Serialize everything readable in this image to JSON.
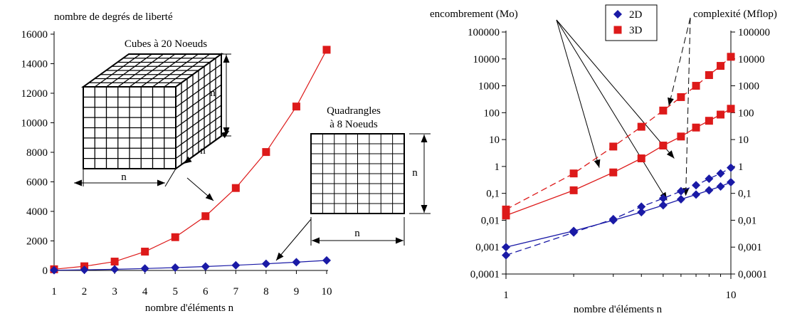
{
  "colors": {
    "red": "#dd1a1a",
    "blue": "#1a1aa6",
    "black": "#000000"
  },
  "chart_data": [
    {
      "type": "line",
      "title": "",
      "ylabel": "nombre de degrés de liberté",
      "xlabel": "nombre d'éléments n",
      "x": [
        1,
        2,
        3,
        4,
        5,
        6,
        7,
        8,
        9,
        10
      ],
      "xlim": [
        1,
        10
      ],
      "ylim": [
        0,
        16000
      ],
      "xticks": [
        "1",
        "2",
        "3",
        "4",
        "5",
        "6",
        "7",
        "8",
        "9",
        "10"
      ],
      "yticks": [
        "0",
        "2000",
        "4000",
        "6000",
        "8000",
        "10000",
        "12000",
        "14000",
        "16000"
      ],
      "series": [
        {
          "key": "3D",
          "color": "#dd1a1a",
          "marker": "square",
          "values": [
            81,
            282,
            600,
            1275,
            2253,
            3675,
            5582,
            8019,
            11100,
            14943
          ]
        },
        {
          "key": "2D",
          "color": "#1a1aa6",
          "marker": "diamond",
          "values": [
            16,
            42,
            80,
            130,
            192,
            266,
            352,
            450,
            560,
            682
          ]
        }
      ],
      "annotations": {
        "cube_label": "Cubes à 20 Noeuds",
        "cube_dim_label": "n",
        "quad_label_line1": "Quadrangles",
        "quad_label_line2": "à 8 Noeuds",
        "quad_dim_label": "n"
      }
    },
    {
      "type": "line",
      "title": "",
      "xlabel": "nombre d'éléments n",
      "ylabel_left": "encombrement (Mo)",
      "ylabel_right": "complexité (Mflop)",
      "x_scale": "log",
      "y_scale": "log",
      "x": [
        1,
        2,
        3,
        4,
        5,
        6,
        7,
        8,
        9,
        10
      ],
      "xlim": [
        1,
        10
      ],
      "ylim": [
        0.0001,
        100000
      ],
      "xticks": [
        "1",
        "10"
      ],
      "yticks": [
        "0,0001",
        "0,001",
        "0,01",
        "0,1",
        "1",
        "10",
        "100",
        "1000",
        "10000",
        "100000"
      ],
      "legend": {
        "position": "top-center",
        "entries": [
          {
            "label": "2D",
            "color": "#1a1aa6",
            "marker": "diamond"
          },
          {
            "label": "3D",
            "color": "#dd1a1a",
            "marker": "square"
          }
        ]
      },
      "series": [
        {
          "dim": "3D",
          "quantity": "encombrement (Mo)",
          "style": "solid",
          "color": "#dd1a1a",
          "marker": "square",
          "values": [
            0.015,
            0.13,
            0.6,
            2.0,
            6.0,
            13,
            28,
            50,
            85,
            140
          ]
        },
        {
          "dim": "3D",
          "quantity": "complexité (Mflop)",
          "style": "dashed",
          "color": "#dd1a1a",
          "marker": "square",
          "values": [
            0.025,
            0.55,
            5.5,
            30,
            120,
            380,
            1000,
            2500,
            5500,
            12000
          ]
        },
        {
          "dim": "2D",
          "quantity": "encombrement (Mo)",
          "style": "solid",
          "color": "#1a1aa6",
          "marker": "diamond",
          "values": [
            0.001,
            0.004,
            0.01,
            0.02,
            0.036,
            0.06,
            0.09,
            0.13,
            0.18,
            0.26
          ]
        },
        {
          "dim": "2D",
          "quantity": "complexité (Mflop)",
          "style": "dashed",
          "color": "#1a1aa6",
          "marker": "diamond",
          "values": [
            0.0005,
            0.0035,
            0.011,
            0.032,
            0.065,
            0.12,
            0.2,
            0.35,
            0.55,
            0.9
          ]
        }
      ]
    }
  ]
}
